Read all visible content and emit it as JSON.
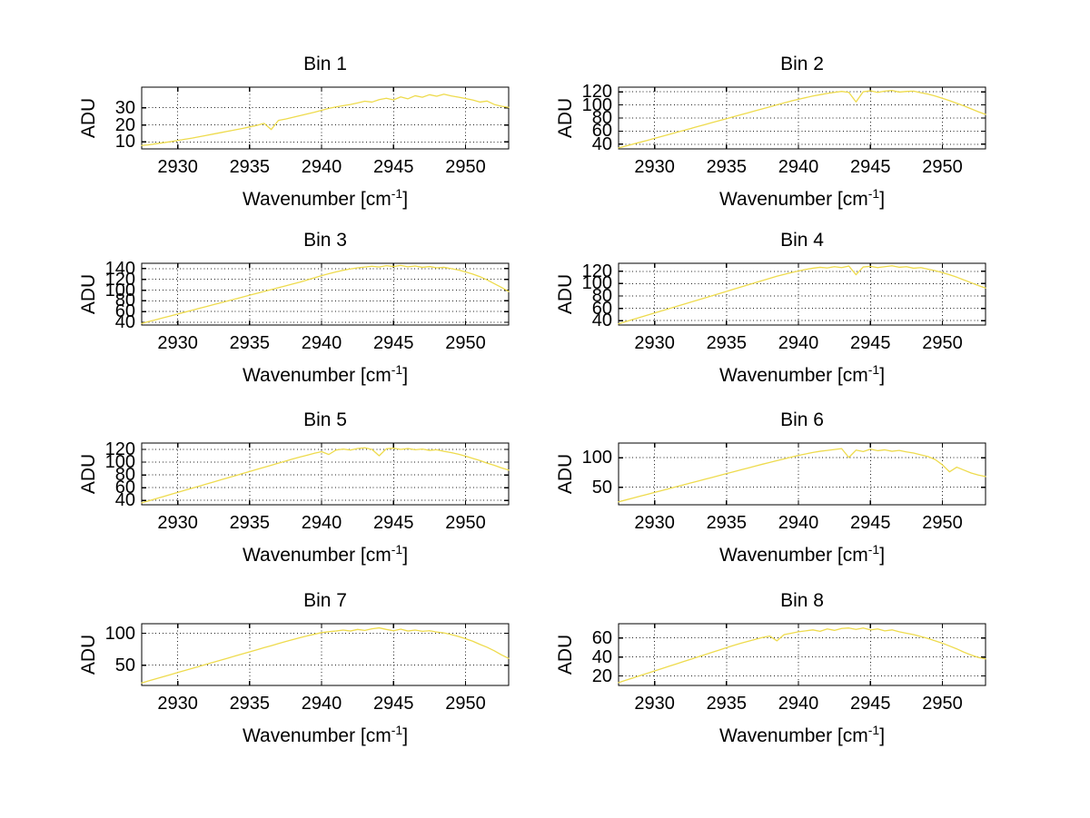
{
  "figure": {
    "background": "#ffffff",
    "line_color": "#eedb4d",
    "grid_color": "#222222",
    "frame_color": "#000000",
    "text_color": "#000000"
  },
  "labels": {
    "ylabel": "ADU",
    "xlabel_base": "Wavenumber [cm",
    "xlabel_sup": "-1",
    "xlabel_close": "]"
  },
  "chart_data": [
    {
      "type": "line",
      "title": "Bin 1",
      "xlabel": "Wavenumber [cm^-1]",
      "ylabel": "ADU",
      "grid": true,
      "legend": "none",
      "xlim": [
        2927.5,
        2953
      ],
      "ylim": [
        6,
        42
      ],
      "xticks": [
        2930,
        2935,
        2940,
        2945,
        2950
      ],
      "yticks": [
        10,
        20,
        30
      ],
      "x": {
        "start": 2927.5,
        "step": 0.5,
        "count": 52
      },
      "values": [
        8.0,
        8.4,
        9.0,
        9.6,
        10.2,
        10.9,
        11.6,
        12.3,
        13.1,
        13.9,
        14.7,
        15.5,
        16.3,
        17.1,
        17.9,
        18.8,
        19.7,
        20.9,
        17.3,
        22.6,
        23.4,
        24.4,
        25.4,
        26.4,
        27.4,
        28.5,
        29.6,
        30.5,
        31.2,
        31.9,
        32.8,
        33.8,
        33.3,
        34.7,
        35.5,
        34.6,
        36.3,
        35.2,
        37.0,
        36.1,
        37.6,
        36.7,
        37.9,
        36.9,
        36.2,
        35.4,
        34.5,
        33.3,
        33.9,
        31.9,
        30.9,
        30.2
      ]
    },
    {
      "type": "line",
      "title": "Bin 2",
      "xlabel": "Wavenumber [cm^-1]",
      "ylabel": "ADU",
      "grid": true,
      "legend": "none",
      "xlim": [
        2927.5,
        2953
      ],
      "ylim": [
        33,
        127
      ],
      "xticks": [
        2930,
        2935,
        2940,
        2945,
        2950
      ],
      "yticks": [
        40,
        60,
        80,
        100,
        120
      ],
      "x": {
        "start": 2927.5,
        "step": 0.5,
        "count": 52
      },
      "values": [
        34.5,
        37.4,
        40.2,
        43.1,
        46,
        49,
        52,
        55,
        58,
        61,
        64,
        67,
        70,
        73,
        76,
        79,
        82,
        85,
        88,
        91,
        94,
        97,
        100,
        103,
        106,
        108.5,
        111,
        113.5,
        115.5,
        117.5,
        119,
        120.5,
        119,
        104.5,
        120,
        121.5,
        119,
        121,
        122,
        119.5,
        120.5,
        121,
        118.5,
        116.5,
        113.5,
        110,
        106.5,
        102.5,
        98.5,
        94,
        89.5,
        85.5
      ]
    },
    {
      "type": "line",
      "title": "Bin 3",
      "xlabel": "Wavenumber [cm^-1]",
      "ylabel": "ADU",
      "grid": true,
      "legend": "none",
      "xlim": [
        2927.5,
        2953
      ],
      "ylim": [
        35,
        150
      ],
      "xticks": [
        2930,
        2935,
        2940,
        2945,
        2950
      ],
      "yticks": [
        40,
        60,
        80,
        100,
        120,
        140
      ],
      "x": {
        "start": 2927.5,
        "step": 0.5,
        "count": 52
      },
      "values": [
        38,
        41.5,
        45,
        48.5,
        52,
        55.5,
        59,
        62.5,
        66,
        69.5,
        73,
        76.5,
        80,
        83.5,
        87,
        90.5,
        94,
        97.5,
        101,
        104.5,
        108,
        111.5,
        115,
        119,
        123,
        127,
        130.5,
        134,
        137,
        139.5,
        141.5,
        143,
        144.5,
        143,
        145.5,
        144,
        146,
        143.5,
        145,
        142.5,
        144,
        141.5,
        142.5,
        140,
        137.5,
        134,
        130,
        125,
        119,
        112,
        105,
        97.5
      ]
    },
    {
      "type": "line",
      "title": "Bin 4",
      "xlabel": "Wavenumber [cm^-1]",
      "ylabel": "ADU",
      "grid": true,
      "legend": "none",
      "xlim": [
        2927.5,
        2953
      ],
      "ylim": [
        33,
        133
      ],
      "xticks": [
        2930,
        2935,
        2940,
        2945,
        2950
      ],
      "yticks": [
        40,
        60,
        80,
        100,
        120
      ],
      "x": {
        "start": 2927.5,
        "step": 0.5,
        "count": 52
      },
      "values": [
        35,
        38.5,
        42,
        45.5,
        49,
        52.5,
        56,
        59.5,
        63,
        66.5,
        70,
        73.5,
        77,
        80.5,
        84,
        87.5,
        91,
        94.5,
        98,
        101.5,
        105,
        108.5,
        112,
        115,
        118,
        120.5,
        123,
        125,
        126.5,
        125.5,
        127.5,
        126,
        128.5,
        114.5,
        127,
        128,
        126,
        127.5,
        129,
        126.5,
        127.5,
        125,
        126,
        123.5,
        121,
        118,
        114.5,
        110.5,
        106,
        101.5,
        97,
        93
      ]
    },
    {
      "type": "line",
      "title": "Bin 5",
      "xlabel": "Wavenumber [cm^-1]",
      "ylabel": "ADU",
      "grid": true,
      "legend": "none",
      "xlim": [
        2927.5,
        2953
      ],
      "ylim": [
        33,
        130
      ],
      "xticks": [
        2930,
        2935,
        2940,
        2945,
        2950
      ],
      "yticks": [
        40,
        60,
        80,
        100,
        120
      ],
      "x": {
        "start": 2927.5,
        "step": 0.5,
        "count": 52
      },
      "values": [
        36,
        39.3,
        42.6,
        45.9,
        49.2,
        52.5,
        55.8,
        59,
        62.3,
        65.6,
        68.9,
        72.2,
        75.5,
        78.7,
        82,
        85.3,
        88.6,
        91.9,
        95.1,
        98.4,
        101.7,
        105,
        108,
        111,
        114,
        116.5,
        112,
        119,
        120.5,
        119,
        121.5,
        122.5,
        120,
        110,
        121,
        122,
        120,
        121.5,
        119.5,
        120.5,
        118.5,
        119.5,
        117,
        115,
        112.5,
        109.5,
        106,
        102.5,
        98.5,
        95,
        91,
        87.5
      ]
    },
    {
      "type": "line",
      "title": "Bin 6",
      "xlabel": "Wavenumber [cm^-1]",
      "ylabel": "ADU",
      "grid": true,
      "legend": "none",
      "xlim": [
        2927.5,
        2953
      ],
      "ylim": [
        20,
        125
      ],
      "xticks": [
        2930,
        2935,
        2940,
        2945,
        2950
      ],
      "yticks": [
        50,
        100
      ],
      "x": {
        "start": 2927.5,
        "step": 0.5,
        "count": 52
      },
      "values": [
        25,
        28.2,
        31.4,
        34.6,
        37.8,
        41,
        44.2,
        47.4,
        50.6,
        53.8,
        57,
        60.2,
        63.4,
        66.6,
        69.8,
        73,
        76.2,
        79.4,
        82.6,
        85.8,
        89,
        92,
        95,
        98,
        101,
        104,
        106.5,
        109,
        111,
        112.5,
        114,
        115.5,
        100.5,
        113,
        110.5,
        114.5,
        112,
        113.5,
        111,
        112.5,
        110,
        108,
        105,
        102,
        97,
        88,
        76,
        84,
        79,
        74,
        70.5,
        68
      ]
    },
    {
      "type": "line",
      "title": "Bin 7",
      "xlabel": "Wavenumber [cm^-1]",
      "ylabel": "ADU",
      "grid": true,
      "legend": "none",
      "xlim": [
        2927.5,
        2953
      ],
      "ylim": [
        18,
        115
      ],
      "xticks": [
        2930,
        2935,
        2940,
        2945,
        2950
      ],
      "yticks": [
        50,
        100
      ],
      "x": {
        "start": 2927.5,
        "step": 0.5,
        "count": 52
      },
      "values": [
        22,
        25.3,
        28.5,
        31.8,
        35,
        38.3,
        41.5,
        44.8,
        48,
        51.3,
        54.5,
        57.8,
        61,
        64.3,
        67.5,
        70.8,
        74,
        77.3,
        80.5,
        83.8,
        87,
        90,
        93,
        96,
        98.5,
        101,
        102.5,
        103.5,
        105,
        103.5,
        106,
        104.5,
        107,
        108.5,
        106,
        104,
        106.5,
        103.5,
        105,
        103,
        104,
        102,
        100.5,
        98,
        95,
        91.5,
        87.5,
        82.5,
        78,
        72.5,
        66,
        60.5
      ]
    },
    {
      "type": "line",
      "title": "Bin 8",
      "xlabel": "Wavenumber [cm^-1]",
      "ylabel": "ADU",
      "grid": true,
      "legend": "none",
      "xlim": [
        2927.5,
        2953
      ],
      "ylim": [
        10,
        75
      ],
      "xticks": [
        2930,
        2935,
        2940,
        2945,
        2950
      ],
      "yticks": [
        20,
        40,
        60
      ],
      "x": {
        "start": 2927.5,
        "step": 0.5,
        "count": 52
      },
      "values": [
        13,
        15.5,
        17.9,
        20.4,
        22.8,
        25.3,
        27.7,
        30.2,
        32.6,
        35.1,
        37.5,
        40,
        42.4,
        44.9,
        47.3,
        49.8,
        52.2,
        54.5,
        56.5,
        58.5,
        60.5,
        62,
        57,
        63.5,
        65,
        66.5,
        67.5,
        68.5,
        67,
        69.5,
        68,
        70,
        70.5,
        69,
        70.5,
        68.5,
        69.5,
        67.5,
        68.5,
        66.5,
        65,
        63.5,
        61.5,
        59.5,
        57,
        54.5,
        51.5,
        48.5,
        45,
        42,
        39.5,
        38
      ]
    }
  ]
}
